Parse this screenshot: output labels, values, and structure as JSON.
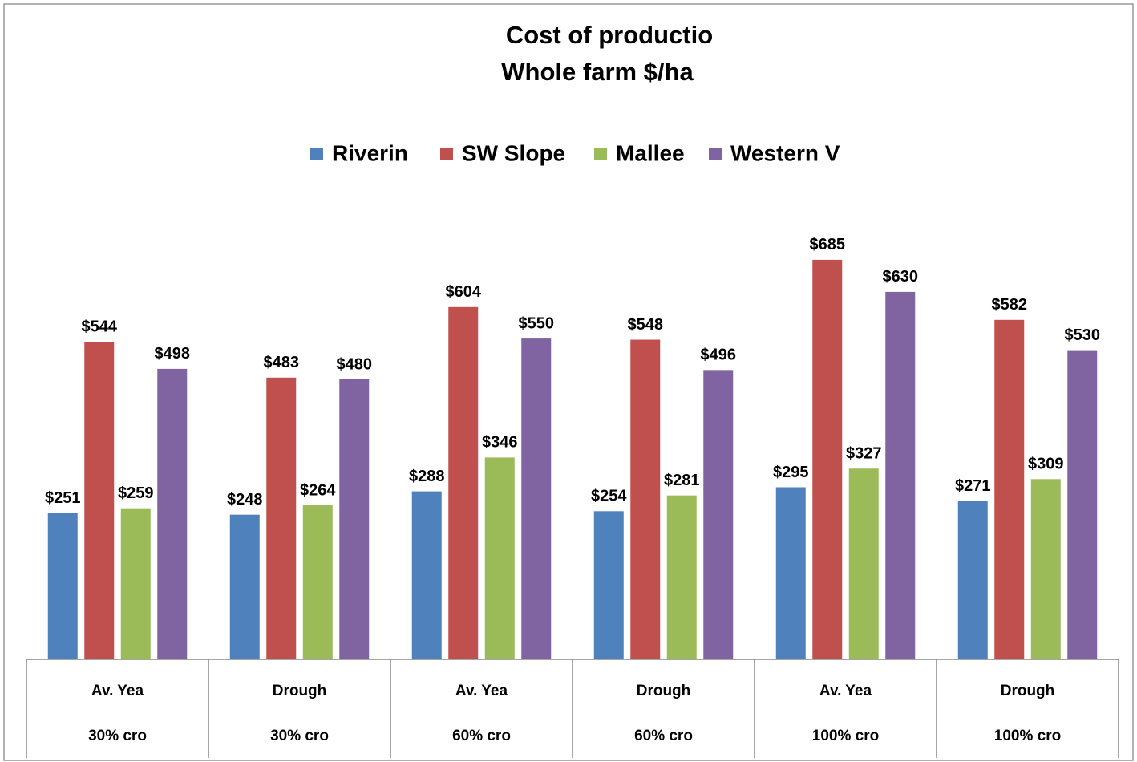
{
  "chart_data": {
    "type": "bar",
    "title": "Cost of productio",
    "subtitle": "Whole farm $/ha",
    "categories": [
      "Av. Yea",
      "Drough",
      "Av. Yea",
      "Drough",
      "Av. Yea",
      "Drough"
    ],
    "subcategories": [
      "30% cro",
      "30% cro",
      "60% cro",
      "60% cro",
      "100% cro",
      "100% cro"
    ],
    "series": [
      {
        "name": "Riverin",
        "color": "#4f81bd",
        "values": [
          251,
          248,
          288,
          254,
          295,
          271
        ],
        "value_labels": [
          "$251",
          "$248",
          "$288",
          "$254",
          "$295",
          "$271"
        ]
      },
      {
        "name": "SW Slope",
        "color": "#c0504d",
        "values": [
          544,
          483,
          604,
          548,
          685,
          582
        ],
        "value_labels": [
          "$544",
          "$483",
          "$604",
          "$548",
          "$685",
          "$582"
        ]
      },
      {
        "name": "Mallee",
        "color": "#9bbb59",
        "values": [
          259,
          264,
          346,
          281,
          327,
          309
        ],
        "value_labels": [
          "$259",
          "$264",
          "$346",
          "$281",
          "$327",
          "$309"
        ]
      },
      {
        "name": "Western V",
        "color": "#8064a2",
        "values": [
          498,
          480,
          550,
          496,
          630,
          530
        ],
        "value_labels": [
          "$498",
          "$480",
          "$550",
          "$496",
          "$630",
          "$530"
        ]
      }
    ],
    "ylim": [
      0,
      700
    ],
    "legend": "top"
  }
}
